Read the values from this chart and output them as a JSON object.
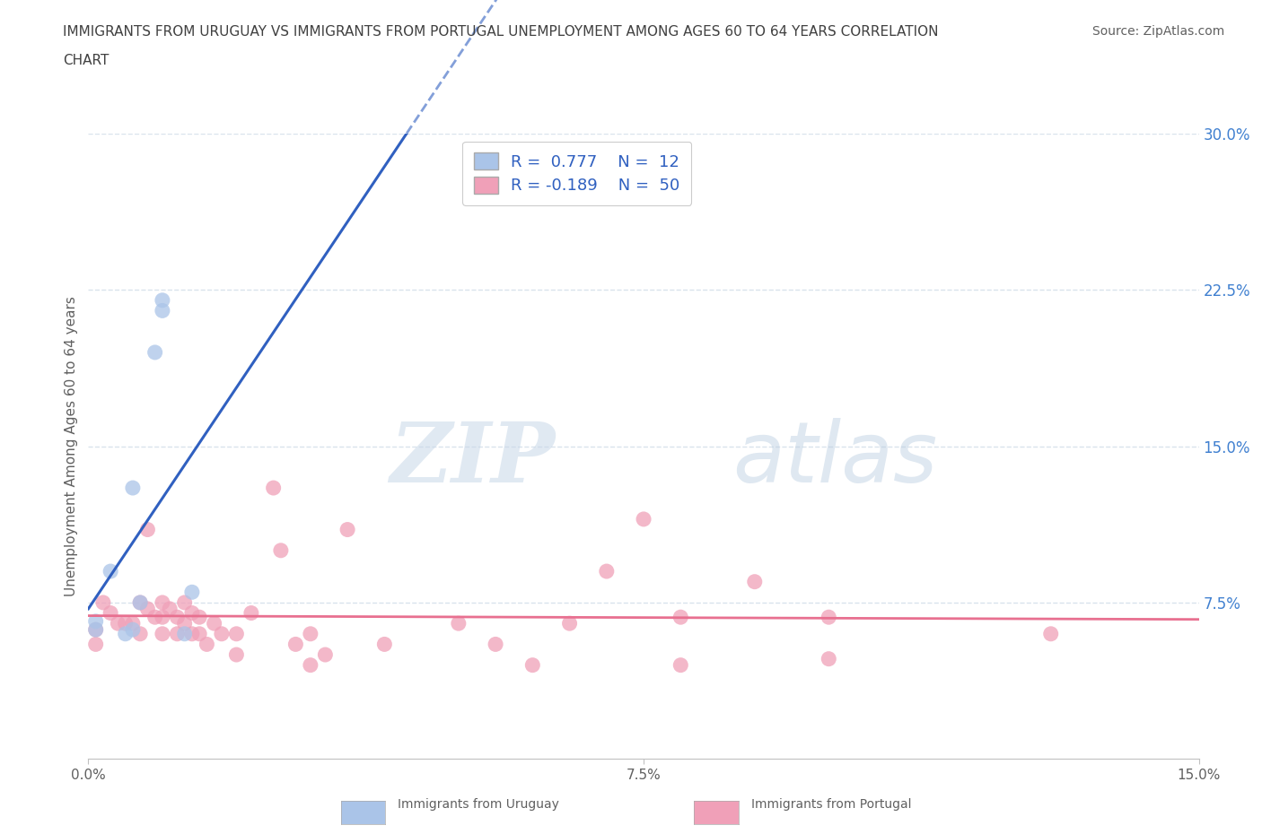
{
  "title_line1": "IMMIGRANTS FROM URUGUAY VS IMMIGRANTS FROM PORTUGAL UNEMPLOYMENT AMONG AGES 60 TO 64 YEARS CORRELATION",
  "title_line2": "CHART",
  "source": "Source: ZipAtlas.com",
  "ylabel": "Unemployment Among Ages 60 to 64 years",
  "xlim": [
    0.0,
    0.15
  ],
  "ylim": [
    0.0,
    0.3
  ],
  "xticks": [
    0.0,
    0.075,
    0.15
  ],
  "xticklabels": [
    "0.0%",
    "7.5%",
    "15.0%"
  ],
  "ytick_positions": [
    0.075,
    0.15,
    0.225,
    0.3
  ],
  "yticklabels_right": [
    "7.5%",
    "15.0%",
    "22.5%",
    "30.0%"
  ],
  "watermark_zip": "ZIP",
  "watermark_atlas": "atlas",
  "legend_R1": "R =  0.777",
  "legend_N1": "N =  12",
  "legend_R2": "R = -0.189",
  "legend_N2": "N =  50",
  "uruguay_color": "#aac4e8",
  "portugal_color": "#f0a0b8",
  "trendline_uruguay_color": "#3060c0",
  "trendline_portugal_color": "#e87090",
  "grid_color": "#d0dce8",
  "background_color": "#ffffff",
  "title_color": "#404040",
  "tick_color": "#606060",
  "right_tick_color": "#4080d0",
  "ylabel_color": "#606060",
  "uruguay_scatter": [
    [
      0.001,
      0.062
    ],
    [
      0.001,
      0.066
    ],
    [
      0.003,
      0.09
    ],
    [
      0.005,
      0.06
    ],
    [
      0.006,
      0.062
    ],
    [
      0.006,
      0.13
    ],
    [
      0.007,
      0.075
    ],
    [
      0.009,
      0.195
    ],
    [
      0.01,
      0.22
    ],
    [
      0.01,
      0.215
    ],
    [
      0.013,
      0.06
    ],
    [
      0.014,
      0.08
    ]
  ],
  "portugal_scatter": [
    [
      0.001,
      0.062
    ],
    [
      0.001,
      0.055
    ],
    [
      0.002,
      0.075
    ],
    [
      0.003,
      0.07
    ],
    [
      0.004,
      0.065
    ],
    [
      0.005,
      0.065
    ],
    [
      0.006,
      0.065
    ],
    [
      0.007,
      0.06
    ],
    [
      0.007,
      0.075
    ],
    [
      0.008,
      0.11
    ],
    [
      0.008,
      0.072
    ],
    [
      0.009,
      0.068
    ],
    [
      0.01,
      0.06
    ],
    [
      0.01,
      0.075
    ],
    [
      0.01,
      0.068
    ],
    [
      0.011,
      0.072
    ],
    [
      0.012,
      0.068
    ],
    [
      0.012,
      0.06
    ],
    [
      0.013,
      0.075
    ],
    [
      0.013,
      0.065
    ],
    [
      0.014,
      0.06
    ],
    [
      0.014,
      0.07
    ],
    [
      0.015,
      0.068
    ],
    [
      0.015,
      0.06
    ],
    [
      0.016,
      0.055
    ],
    [
      0.017,
      0.065
    ],
    [
      0.018,
      0.06
    ],
    [
      0.02,
      0.05
    ],
    [
      0.02,
      0.06
    ],
    [
      0.022,
      0.07
    ],
    [
      0.025,
      0.13
    ],
    [
      0.026,
      0.1
    ],
    [
      0.028,
      0.055
    ],
    [
      0.03,
      0.045
    ],
    [
      0.03,
      0.06
    ],
    [
      0.032,
      0.05
    ],
    [
      0.035,
      0.11
    ],
    [
      0.04,
      0.055
    ],
    [
      0.05,
      0.065
    ],
    [
      0.055,
      0.055
    ],
    [
      0.06,
      0.045
    ],
    [
      0.065,
      0.065
    ],
    [
      0.07,
      0.09
    ],
    [
      0.075,
      0.115
    ],
    [
      0.08,
      0.068
    ],
    [
      0.08,
      0.045
    ],
    [
      0.09,
      0.085
    ],
    [
      0.1,
      0.068
    ],
    [
      0.1,
      0.048
    ],
    [
      0.13,
      0.06
    ]
  ],
  "title_fontsize": 11,
  "axis_fontsize": 11,
  "tick_fontsize": 11,
  "legend_fontsize": 13,
  "source_fontsize": 10
}
